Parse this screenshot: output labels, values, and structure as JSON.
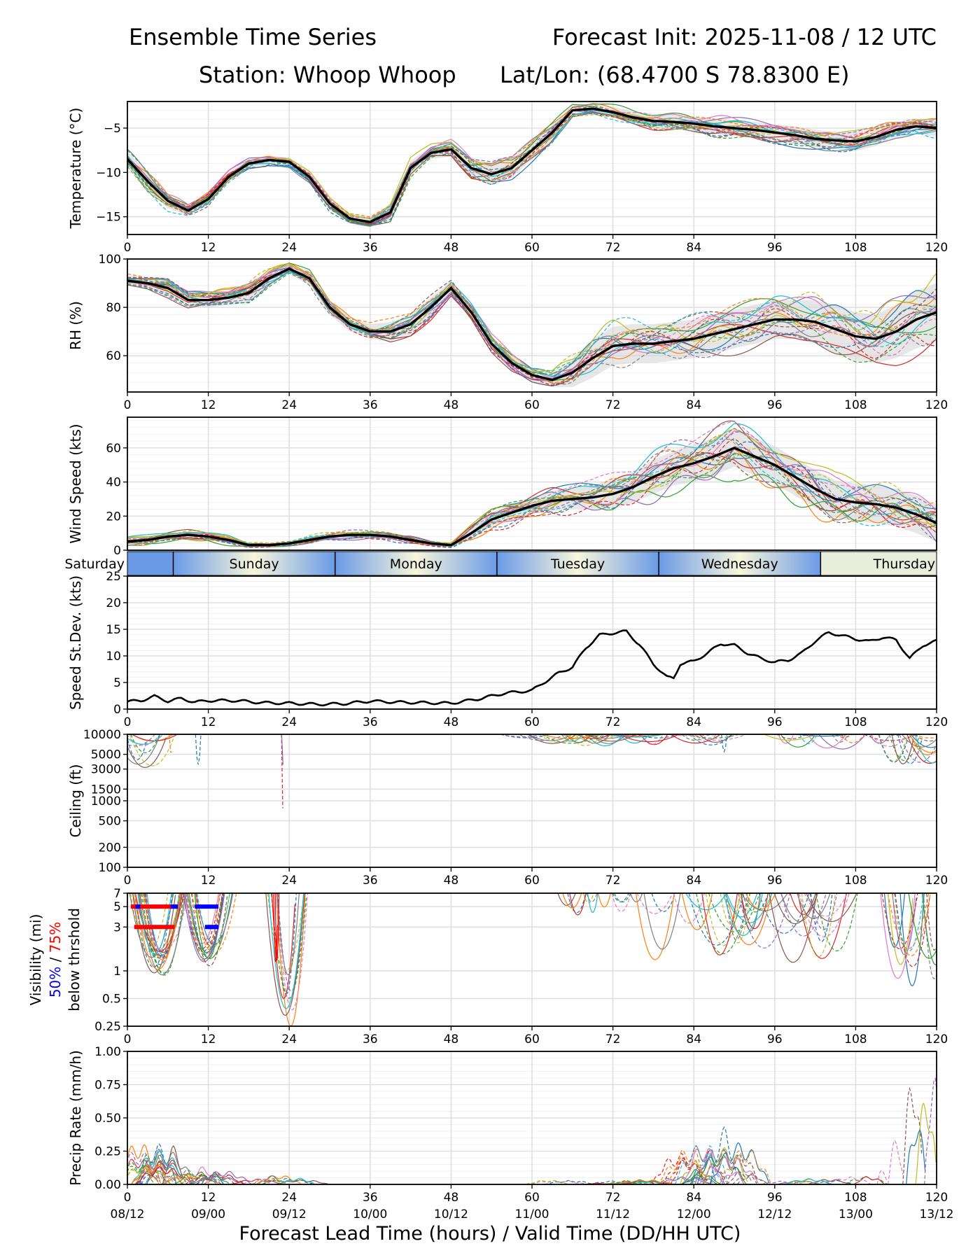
{
  "header": {
    "title": "Ensemble Time Series",
    "init": "Forecast Init: 2025-11-08 / 12 UTC",
    "station": "Station: Whoop Whoop",
    "latlon": "Lat/Lon: (68.4700 S 78.8300 E)"
  },
  "colors": {
    "members": [
      "#1f77b4",
      "#ff7f0e",
      "#2ca02c",
      "#d62728",
      "#9467bd",
      "#8c564b",
      "#e377c2",
      "#7f7f7f",
      "#bcbd22",
      "#17becf"
    ],
    "mean": "#000000",
    "spread": "#d3d3d3",
    "grid": "#e0e0e0",
    "day_band": [
      "#6a9ae6",
      "#f8f6dc"
    ],
    "vis_50": "#0000ff",
    "vis_75": "#ff0000"
  },
  "days": [
    "Saturday",
    "Sunday",
    "Monday",
    "Tuesday",
    "Wednesday",
    "Thursday"
  ],
  "chart_data": [
    {
      "id": "temperature",
      "type": "line",
      "ylabel": "Temperature (°C)",
      "ylim": [
        -17,
        -2
      ],
      "yticks": [
        -15,
        -10,
        -5
      ],
      "ytick_labels": [
        "−15",
        "−10",
        "−5"
      ],
      "xlim": [
        0,
        120
      ],
      "xticks": [
        0,
        12,
        24,
        36,
        48,
        60,
        72,
        84,
        96,
        108,
        120
      ],
      "x": [
        0,
        3,
        6,
        9,
        12,
        15,
        18,
        21,
        24,
        27,
        30,
        33,
        36,
        39,
        42,
        45,
        48,
        51,
        54,
        57,
        60,
        63,
        66,
        69,
        72,
        75,
        78,
        81,
        84,
        87,
        90,
        93,
        96,
        99,
        102,
        105,
        108,
        111,
        114,
        117,
        120
      ],
      "mean": [
        -8.5,
        -11,
        -13.2,
        -14.3,
        -13,
        -10.5,
        -9,
        -8.6,
        -8.8,
        -10.5,
        -13.5,
        -15.2,
        -15.6,
        -14.5,
        -9.5,
        -7.8,
        -7.4,
        -9.5,
        -10.2,
        -9.5,
        -7.5,
        -5.5,
        -3,
        -2.8,
        -3.2,
        -3.8,
        -4.2,
        -4.3,
        -4.5,
        -4.8,
        -5,
        -5.2,
        -5.5,
        -5.8,
        -6.2,
        -6.4,
        -6.5,
        -6,
        -5.2,
        -4.8,
        -5
      ],
      "spread": [
        0.8,
        1,
        0.8,
        0.6,
        0.6,
        0.5,
        0.5,
        0.5,
        0.5,
        0.6,
        0.7,
        0.6,
        0.5,
        0.8,
        0.8,
        0.7,
        0.8,
        1.2,
        1.2,
        1.1,
        1,
        0.8,
        0.6,
        0.6,
        0.6,
        0.7,
        0.8,
        0.8,
        0.8,
        0.9,
        0.9,
        0.9,
        0.9,
        1,
        1,
        1,
        1.1,
        1,
        0.9,
        0.9,
        0.9
      ],
      "members": 20
    },
    {
      "id": "rh",
      "type": "line",
      "ylabel": "RH (%)",
      "ylim": [
        45,
        100
      ],
      "yticks": [
        60,
        80,
        100
      ],
      "ytick_labels": [
        "60",
        "80",
        "100"
      ],
      "xlim": [
        0,
        120
      ],
      "xticks": [
        0,
        12,
        24,
        36,
        48,
        60,
        72,
        84,
        96,
        108,
        120
      ],
      "x": [
        0,
        3,
        6,
        9,
        12,
        15,
        18,
        21,
        24,
        27,
        30,
        33,
        36,
        39,
        42,
        45,
        48,
        51,
        54,
        57,
        60,
        63,
        66,
        69,
        72,
        75,
        78,
        81,
        84,
        87,
        90,
        93,
        96,
        99,
        102,
        105,
        108,
        111,
        114,
        117,
        120
      ],
      "mean": [
        91,
        90,
        88,
        83,
        83,
        84,
        86,
        92,
        96,
        92,
        80,
        73,
        70,
        70,
        73,
        80,
        88,
        78,
        65,
        57,
        52,
        50,
        53,
        59,
        64,
        65,
        65,
        66,
        67,
        69,
        71,
        73,
        75,
        75,
        74,
        71,
        68,
        67,
        70,
        75,
        78
      ],
      "spread": [
        2,
        2,
        3,
        3,
        3,
        3,
        4,
        3,
        2,
        3,
        3,
        3,
        3,
        4,
        4,
        4,
        3,
        3,
        3,
        3,
        3,
        3,
        6,
        8,
        8,
        8,
        8,
        8,
        8,
        8,
        8,
        8,
        8,
        8,
        9,
        10,
        10,
        10,
        11,
        12,
        12
      ],
      "members": 20
    },
    {
      "id": "wind",
      "type": "line",
      "ylabel": "Wind Speed (kts)",
      "ylim": [
        0,
        78
      ],
      "yticks": [
        0,
        20,
        40,
        60
      ],
      "ytick_labels": [
        "0",
        "20",
        "40",
        "60"
      ],
      "xlim": [
        0,
        120
      ],
      "xticks": [],
      "x": [
        0,
        3,
        6,
        9,
        12,
        15,
        18,
        21,
        24,
        27,
        30,
        33,
        36,
        39,
        42,
        45,
        48,
        51,
        54,
        57,
        60,
        63,
        66,
        69,
        72,
        75,
        78,
        81,
        84,
        87,
        90,
        93,
        96,
        99,
        102,
        105,
        108,
        111,
        114,
        117,
        120
      ],
      "mean": [
        5,
        6,
        8,
        9,
        8,
        6,
        3,
        3,
        4,
        6,
        8,
        9,
        9,
        8,
        6,
        4,
        3,
        10,
        18,
        22,
        26,
        29,
        30,
        31,
        33,
        37,
        43,
        48,
        51,
        55,
        60,
        55,
        50,
        43,
        36,
        30,
        28,
        27,
        25,
        21,
        16
      ],
      "spread": [
        2,
        2,
        2,
        2,
        2,
        2,
        1,
        1,
        1,
        2,
        2,
        2,
        2,
        2,
        2,
        1,
        1,
        3,
        4,
        5,
        5,
        6,
        6,
        7,
        9,
        9,
        10,
        10,
        11,
        11,
        11,
        11,
        11,
        11,
        11,
        11,
        11,
        11,
        11,
        11,
        11
      ],
      "members": 20
    },
    {
      "id": "speed_stdev",
      "type": "line",
      "ylabel": "Speed St.Dev. (kts)",
      "ylim": [
        0,
        25
      ],
      "yticks": [
        0,
        5,
        10,
        15,
        20,
        25
      ],
      "ytick_labels": [
        "0",
        "5",
        "10",
        "15",
        "20",
        "25"
      ],
      "xlim": [
        0,
        120
      ],
      "xticks": [
        0,
        12,
        24,
        36,
        48,
        60,
        72,
        84,
        96,
        108,
        120
      ],
      "x": [
        0,
        2,
        4,
        6,
        8,
        10,
        12,
        16,
        20,
        24,
        28,
        32,
        36,
        40,
        44,
        48,
        52,
        56,
        60,
        62,
        64,
        66,
        68,
        70,
        72,
        74,
        76,
        78,
        80,
        81,
        82,
        84,
        86,
        88,
        90,
        92,
        94,
        96,
        98,
        100,
        102,
        104,
        106,
        108,
        110,
        112,
        114,
        116,
        118,
        120
      ],
      "y": [
        1.4,
        1.6,
        2.4,
        1.5,
        2.0,
        1.3,
        1.6,
        1.6,
        1.2,
        1.1,
        0.9,
        1.0,
        1.5,
        1.3,
        1.2,
        1.1,
        1.9,
        3.0,
        3.5,
        5.2,
        6.8,
        7.9,
        11.5,
        13.9,
        14.3,
        14.6,
        12.0,
        8.5,
        6.0,
        5.8,
        8.5,
        9.0,
        10.5,
        12.3,
        12.0,
        10.5,
        9.5,
        8.8,
        9.2,
        10.5,
        12.8,
        14.4,
        13.8,
        13.2,
        12.7,
        13.5,
        13.0,
        9.5,
        12.0,
        12.8
      ]
    },
    {
      "id": "ceiling",
      "type": "line",
      "ylabel": "Ceiling (ft)",
      "scale": "log",
      "ylim": [
        100,
        10000
      ],
      "yticks": [
        100,
        200,
        500,
        1000,
        1500,
        3000,
        5000,
        10000
      ],
      "ytick_labels": [
        "100",
        "200",
        "500",
        "1000",
        "1500",
        "3000",
        "5000",
        "10000"
      ],
      "xlim": [
        0,
        120
      ],
      "xticks": [
        0,
        12,
        24,
        36,
        48,
        60,
        72,
        84,
        96,
        108,
        120
      ]
    },
    {
      "id": "visibility",
      "type": "line",
      "ylabel": "Visibility (mi)",
      "ylabel_50": "50%",
      "ylabel_slash": " / ",
      "ylabel_75": "75%",
      "ylabel_3": "below thrshold",
      "scale": "log",
      "ylim": [
        0.25,
        7
      ],
      "yticks": [
        0.25,
        0.5,
        1,
        3,
        5,
        7
      ],
      "ytick_labels": [
        "0.25",
        "0.5",
        "1",
        "3",
        "5",
        "7"
      ],
      "xlim": [
        0,
        120
      ],
      "xticks": [
        0,
        12,
        24,
        36,
        48,
        60,
        72,
        84,
        96,
        108,
        120
      ],
      "threshold_bars": [
        {
          "threshold": 5,
          "x_start": 0.5,
          "x_end": 7.5,
          "pct": 75
        },
        {
          "threshold": 3,
          "x_start": 1.0,
          "x_end": 7.0,
          "pct": 75
        },
        {
          "threshold": 5,
          "x_start": 10,
          "x_end": 13.5,
          "pct": 50
        },
        {
          "threshold": 3,
          "x_start": 11.5,
          "x_end": 13.5,
          "pct": 50
        }
      ]
    },
    {
      "id": "precip",
      "type": "line",
      "ylabel": "Precip Rate (mm/h)",
      "ylim": [
        0,
        1.0
      ],
      "yticks": [
        0,
        0.25,
        0.5,
        0.75,
        1.0
      ],
      "ytick_labels": [
        "0.00",
        "0.25",
        "0.50",
        "0.75",
        "1.00"
      ],
      "xlim": [
        0,
        120
      ],
      "xticks": [
        0,
        12,
        24,
        36,
        48,
        60,
        72,
        84,
        96,
        108,
        120
      ],
      "valid_times": [
        "08/12",
        "09/00",
        "09/12",
        "10/00",
        "10/12",
        "11/00",
        "11/12",
        "12/00",
        "12/12",
        "13/00",
        "13/12"
      ]
    }
  ],
  "xlabel": "Forecast Lead Time (hours) / Valid Time (DD/HH UTC)"
}
